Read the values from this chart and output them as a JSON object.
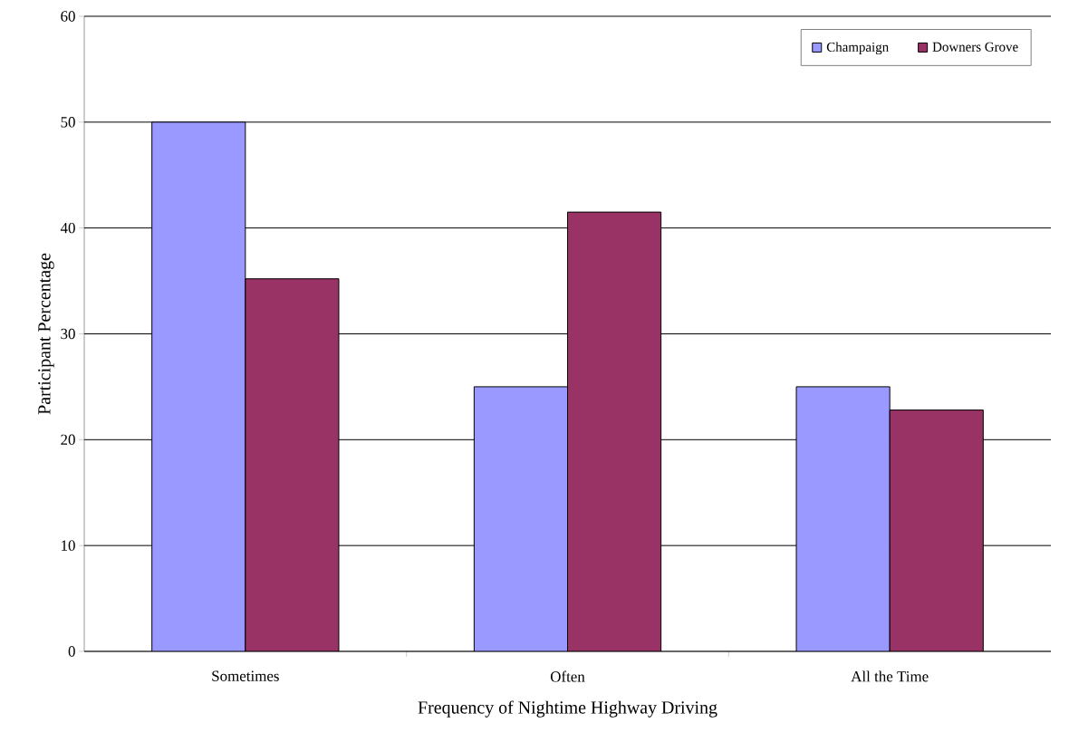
{
  "chart_data": {
    "type": "bar",
    "xlabel": "Frequency of Nightime Highway Driving",
    "ylabel": "Participant Percentage",
    "categories": [
      "Sometimes",
      "Often",
      "All the Time"
    ],
    "series": [
      {
        "name": "Champaign",
        "color": "#9999ff",
        "values": [
          50,
          25,
          25
        ]
      },
      {
        "name": "Downers Grove",
        "color": "#993366",
        "values": [
          35.2,
          41.5,
          22.8
        ]
      }
    ],
    "ylim": [
      0,
      60
    ],
    "yticks": [
      0,
      10,
      20,
      30,
      40,
      50,
      60
    ],
    "grid": "y",
    "legend": "top right"
  }
}
